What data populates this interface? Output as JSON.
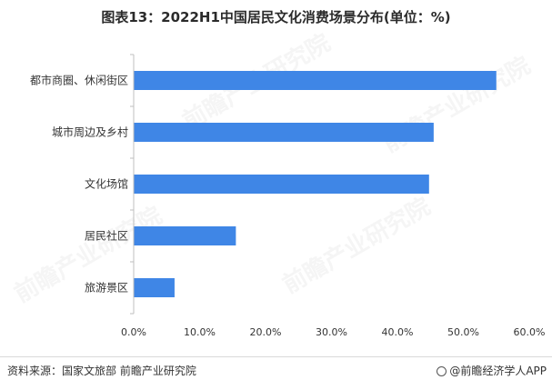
{
  "title": "图表13：2022H1中国居民文化消费场景分布(单位：%)",
  "source": "资料来源：国家文旅部 前瞻产业研究院",
  "brand": "@前瞻经济学人APP",
  "watermark": "前瞻产业研究院",
  "colors": {
    "bar": "#3f86e6",
    "axis": "#bfbfbf",
    "text": "#333333"
  },
  "chart_data": {
    "type": "bar",
    "orientation": "horizontal",
    "categories": [
      "都市商圈、休闲街区",
      "城市周边及乡村",
      "文化场馆",
      "居民社区",
      "旅游景区"
    ],
    "values": [
      55,
      45.5,
      44.8,
      15.5,
      6.2
    ],
    "xlim": [
      0,
      60
    ],
    "ticks": [
      "0.0%",
      "10.0%",
      "20.0%",
      "30.0%",
      "40.0%",
      "50.0%",
      "60.0%"
    ],
    "tick_values": [
      0,
      10,
      20,
      30,
      40,
      50,
      60
    ],
    "grid": false
  }
}
